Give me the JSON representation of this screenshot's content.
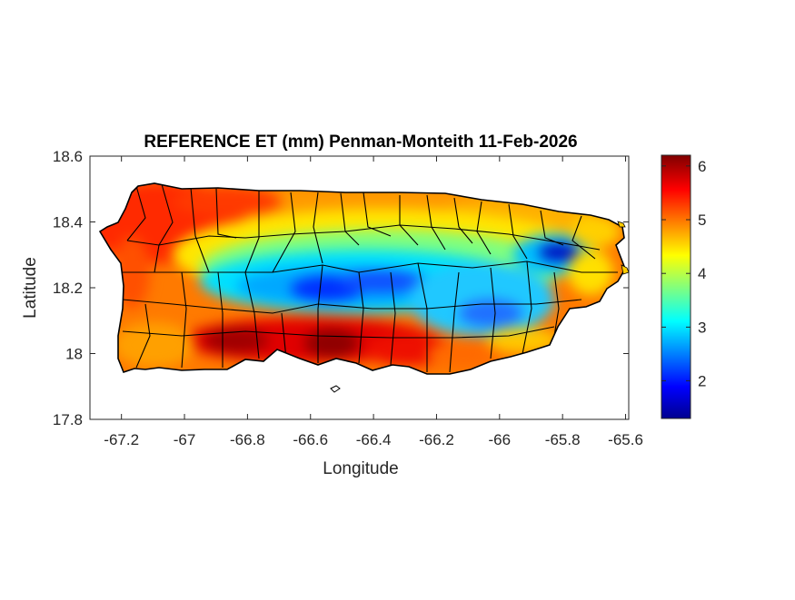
{
  "figure": {
    "title": "REFERENCE ET (mm) Penman-Monteith 11-Feb-2026",
    "xlabel": "Longitude",
    "ylabel": "Latitude"
  },
  "map": {
    "region": "Puerto Rico",
    "xlim": [
      -67.3,
      -65.59
    ],
    "ylim": [
      17.8,
      18.6
    ],
    "xticks": [
      "-67.2",
      "-67",
      "-66.8",
      "-66.6",
      "-66.4",
      "-66.2",
      "-66",
      "-65.8",
      "-65.6"
    ],
    "xtick_values": [
      -67.2,
      -67.0,
      -66.8,
      -66.6,
      -66.4,
      -66.2,
      -66.0,
      -65.8,
      -65.6
    ],
    "yticks": [
      "18.6",
      "18.4",
      "18.2",
      "18",
      "17.8"
    ],
    "ytick_values": [
      18.6,
      18.4,
      18.2,
      18.0,
      17.8
    ],
    "colormap": "jet",
    "colors": [
      "#00008f",
      "#0000ff",
      "#00ffff",
      "#ffff00",
      "#ff0000",
      "#800000"
    ],
    "boundary_color": "#000000"
  },
  "colorbar": {
    "ticks": [
      "6",
      "5",
      "4",
      "3",
      "2"
    ],
    "tick_values": [
      6,
      5,
      4,
      3,
      2
    ],
    "range": [
      1.3,
      6.2
    ]
  }
}
